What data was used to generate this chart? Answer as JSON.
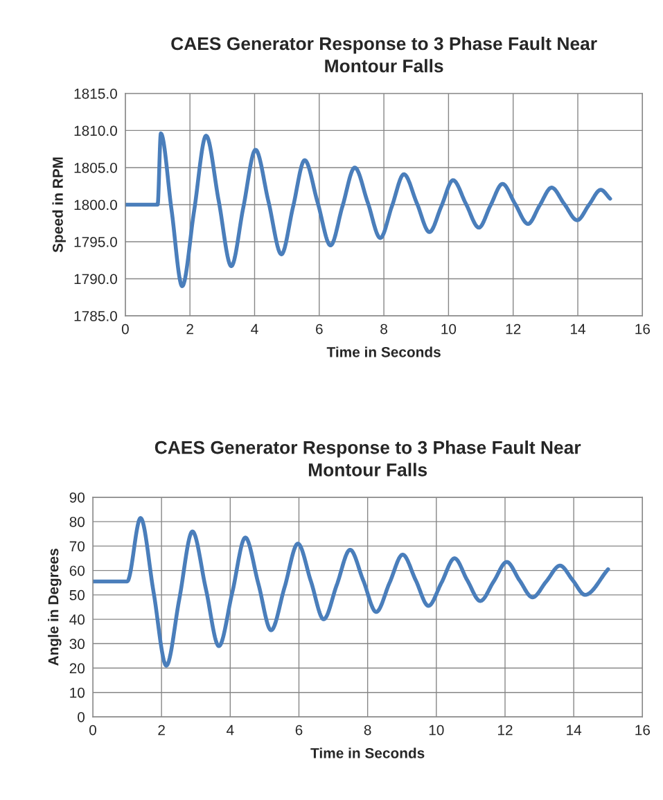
{
  "chart_data": [
    {
      "type": "line",
      "title": "CAES Generator Response to 3 Phase Fault Near\nMontour Falls",
      "xlabel": "Time in Seconds",
      "ylabel": "Speed in RPM",
      "xlim": [
        0,
        16
      ],
      "xticks": [
        0,
        2,
        4,
        6,
        8,
        10,
        12,
        14,
        16
      ],
      "ylim": [
        1785,
        1815
      ],
      "yticks": [
        {
          "value": 1785,
          "label": "1785.0"
        },
        {
          "value": 1790,
          "label": "1790.0"
        },
        {
          "value": 1795,
          "label": "1795.0"
        },
        {
          "value": 1800,
          "label": "1800.0"
        },
        {
          "value": 1805,
          "label": "1805.0"
        },
        {
          "value": 1810,
          "label": "1810.0"
        },
        {
          "value": 1815,
          "label": "1815.0"
        }
      ],
      "grid": true,
      "marker": "none",
      "line_style": "solid",
      "series": [
        {
          "color": "#4a7ebb",
          "x": [
            0,
            1.0,
            1.1,
            1.43,
            1.76,
            2.13,
            2.5,
            2.89,
            3.28,
            3.65,
            4.03,
            4.43,
            4.83,
            5.19,
            5.55,
            5.95,
            6.35,
            6.72,
            7.1,
            7.5,
            7.89,
            8.25,
            8.62,
            9.02,
            9.41,
            9.78,
            10.14,
            10.54,
            10.94,
            11.3,
            11.67,
            12.06,
            12.46,
            12.82,
            13.19,
            13.58,
            13.98,
            14.35,
            14.71,
            15.0
          ],
          "values": [
            1800,
            1800,
            1809.6,
            1799.3,
            1789.0,
            1799.2,
            1809.3,
            1800.5,
            1791.7,
            1799.6,
            1807.4,
            1800.4,
            1793.3,
            1799.7,
            1806.0,
            1800.3,
            1794.5,
            1799.8,
            1805.0,
            1800.3,
            1795.5,
            1799.8,
            1804.1,
            1800.2,
            1796.3,
            1799.8,
            1803.3,
            1800.1,
            1796.9,
            1799.9,
            1802.8,
            1800.1,
            1797.4,
            1799.9,
            1802.3,
            1800.1,
            1797.9,
            1800.0,
            1802.0,
            1800.8
          ]
        }
      ]
    },
    {
      "type": "line",
      "title": "CAES Generator Response to 3 Phase Fault Near\nMontour Falls",
      "xlabel": "Time in Seconds",
      "ylabel": "Angle in Degrees",
      "xlim": [
        0,
        16
      ],
      "xticks": [
        0,
        2,
        4,
        6,
        8,
        10,
        12,
        14,
        16
      ],
      "ylim": [
        0,
        90
      ],
      "yticks": [
        0,
        10,
        20,
        30,
        40,
        50,
        60,
        70,
        80,
        90
      ],
      "grid": true,
      "marker": "none",
      "line_style": "solid",
      "series": [
        {
          "color": "#4a7ebb",
          "x": [
            0,
            1.0,
            1.39,
            1.77,
            2.14,
            2.52,
            2.9,
            3.29,
            3.67,
            4.06,
            4.44,
            4.82,
            5.19,
            5.58,
            5.97,
            6.35,
            6.72,
            7.1,
            7.49,
            7.87,
            8.25,
            8.64,
            9.02,
            9.4,
            9.77,
            10.15,
            10.53,
            10.9,
            11.28,
            11.67,
            12.05,
            12.42,
            12.8,
            13.2,
            13.6,
            13.97,
            14.33,
            15.0
          ],
          "values": [
            55.5,
            55.5,
            81.5,
            51,
            21,
            48.5,
            76,
            52.5,
            29,
            51,
            73.5,
            54.5,
            35.5,
            53,
            71,
            55.5,
            40,
            54,
            68.5,
            56,
            43,
            55,
            66.5,
            56,
            45.5,
            55,
            65,
            56,
            47.5,
            55.5,
            63.5,
            56,
            49,
            55.5,
            62,
            56,
            50,
            60.5
          ]
        }
      ]
    }
  ]
}
